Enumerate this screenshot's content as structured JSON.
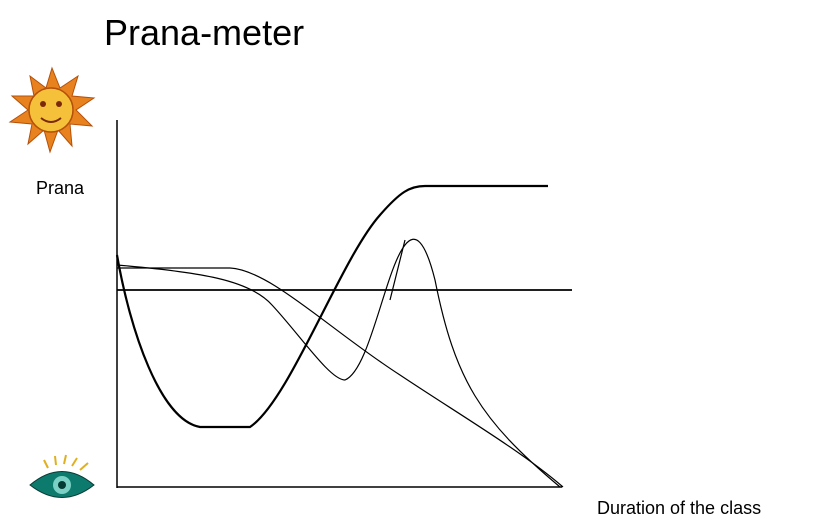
{
  "title": "Prana-meter",
  "y_axis_label": "Prana",
  "x_axis_label": "Duration of the class"
}
